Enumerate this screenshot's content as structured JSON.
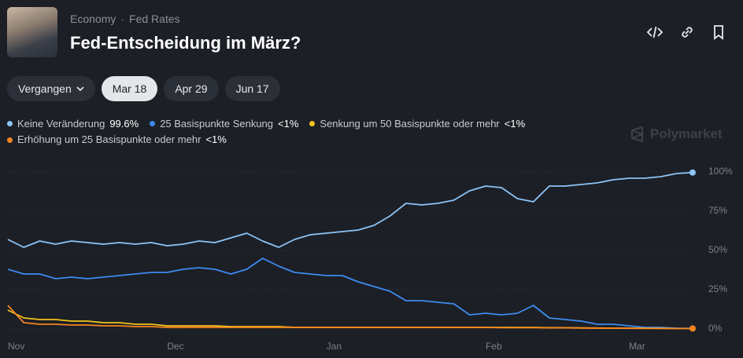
{
  "header": {
    "category": "Economy",
    "separator": "·",
    "subcategory": "Fed Rates",
    "title": "Fed-Entscheidung im März?"
  },
  "tabs": [
    "Vergangen",
    "Mar 18",
    "Apr 29",
    "Jun 17"
  ],
  "brand": "Polymarket",
  "chart_data": {
    "type": "line",
    "categories": [
      "Nov",
      null,
      null,
      null,
      null,
      null,
      null,
      null,
      null,
      null,
      "Dec",
      null,
      null,
      null,
      null,
      null,
      null,
      null,
      null,
      null,
      "Jan",
      null,
      null,
      null,
      null,
      null,
      null,
      null,
      null,
      null,
      "Feb",
      null,
      null,
      null,
      null,
      null,
      null,
      null,
      null,
      "Mar",
      null,
      null,
      null,
      null
    ],
    "series": [
      {
        "name": "Keine Veränderung",
        "legend_value": "99.6%",
        "color": "#8cc4f7",
        "values": [
          57,
          52,
          56,
          54,
          56,
          55,
          54,
          55,
          54,
          55,
          53,
          54,
          56,
          55,
          58,
          61,
          56,
          52,
          57,
          60,
          61,
          62,
          63,
          66,
          72,
          80,
          79,
          80,
          82,
          88,
          91,
          90,
          83,
          81,
          91,
          91,
          92,
          93,
          95,
          96,
          96,
          97,
          99,
          99.6
        ]
      },
      {
        "name": "25 Basispunkte Senkung",
        "legend_value": "<1%",
        "color": "#3d8bf0",
        "values": [
          38,
          35,
          35,
          32,
          33,
          32,
          33,
          34,
          35,
          36,
          36,
          38,
          39,
          38,
          35,
          38,
          45,
          40,
          36,
          35,
          34,
          34,
          30,
          27,
          24,
          18,
          18,
          17,
          16,
          9,
          10,
          9,
          10,
          15,
          7,
          6,
          5,
          3,
          3,
          2,
          1,
          1,
          0.5,
          0.4
        ]
      },
      {
        "name": "Senkung um 50 Basispunkte oder mehr",
        "legend_value": "<1%",
        "color": "#f2c21b",
        "values": [
          12,
          7,
          6,
          6,
          5,
          5,
          4,
          4,
          3,
          3,
          2,
          2,
          2,
          2,
          1.5,
          1.5,
          1.5,
          1.5,
          1,
          1,
          1,
          1,
          1,
          1,
          1,
          1,
          1,
          1,
          1,
          1,
          1,
          1,
          1,
          1,
          0.8,
          0.8,
          0.7,
          0.6,
          0.5,
          0.5,
          0.4,
          0.4,
          0.3,
          0.3
        ]
      },
      {
        "name": "Erhöhung um 25 Basispunkte oder mehr",
        "legend_value": "<1%",
        "color": "#f6861f",
        "values": [
          15,
          4,
          3,
          3,
          2.5,
          2.5,
          2,
          2,
          1.5,
          1.5,
          1,
          1,
          1,
          1,
          1,
          1,
          1,
          1,
          1,
          1,
          1,
          1,
          1,
          1,
          1,
          1,
          1,
          1,
          1,
          1,
          1,
          0.8,
          0.8,
          0.8,
          0.7,
          0.7,
          0.6,
          0.5,
          0.5,
          0.4,
          0.4,
          0.3,
          0.3,
          0.3
        ]
      }
    ],
    "ylim": [
      0,
      100
    ],
    "yticks": [
      {
        "value": 0,
        "label": "0%"
      },
      {
        "value": 25,
        "label": "25%"
      },
      {
        "value": 50,
        "label": "50%"
      },
      {
        "value": 75,
        "label": "75%"
      },
      {
        "value": 100,
        "label": "100%"
      }
    ],
    "grid": true
  }
}
